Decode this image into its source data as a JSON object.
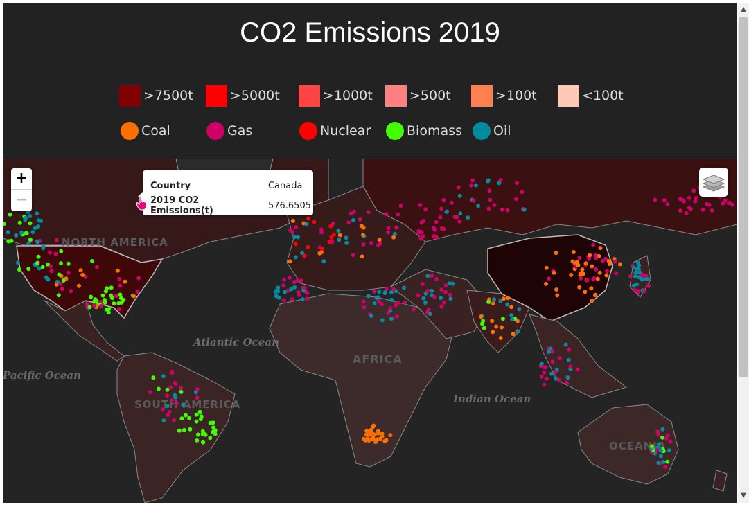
{
  "title": "CO2 Emissions 2019",
  "legend": {
    "emission_levels": [
      {
        "label": ">7500t",
        "color": "#800000"
      },
      {
        "label": ">5000t",
        "color": "#ff0000"
      },
      {
        "label": ">1000t",
        "color": "#ff4444"
      },
      {
        "label": ">500t",
        "color": "#ff8080"
      },
      {
        "label": ">100t",
        "color": "#ff7f50"
      },
      {
        "label": "<100t",
        "color": "#ffc9b5"
      }
    ],
    "fuel_types": [
      {
        "label": "Coal",
        "color": "#ff7000"
      },
      {
        "label": "Gas",
        "color": "#cc0066"
      },
      {
        "label": "Nuclear",
        "color": "#ff0000"
      },
      {
        "label": "Biomass",
        "color": "#44ff00"
      },
      {
        "label": "Oil",
        "color": "#008b9e"
      }
    ]
  },
  "map": {
    "labels": {
      "north_america": "NORTH AMERICA",
      "south_america": "SOUTH AMERICA",
      "africa": "AFRICA",
      "oceania": "OCEANIA",
      "atlantic": "Atlantic Ocean",
      "pacific": "Pacific Ocean",
      "indian": "Indian Ocean"
    },
    "controls": {
      "zoom_in": "+",
      "zoom_out": "−"
    },
    "tooltip": {
      "row1_key": "Country",
      "row1_value": "Canada",
      "row2_key": "2019 CO2 Emissions(t)",
      "row2_value": "576.6505"
    }
  }
}
